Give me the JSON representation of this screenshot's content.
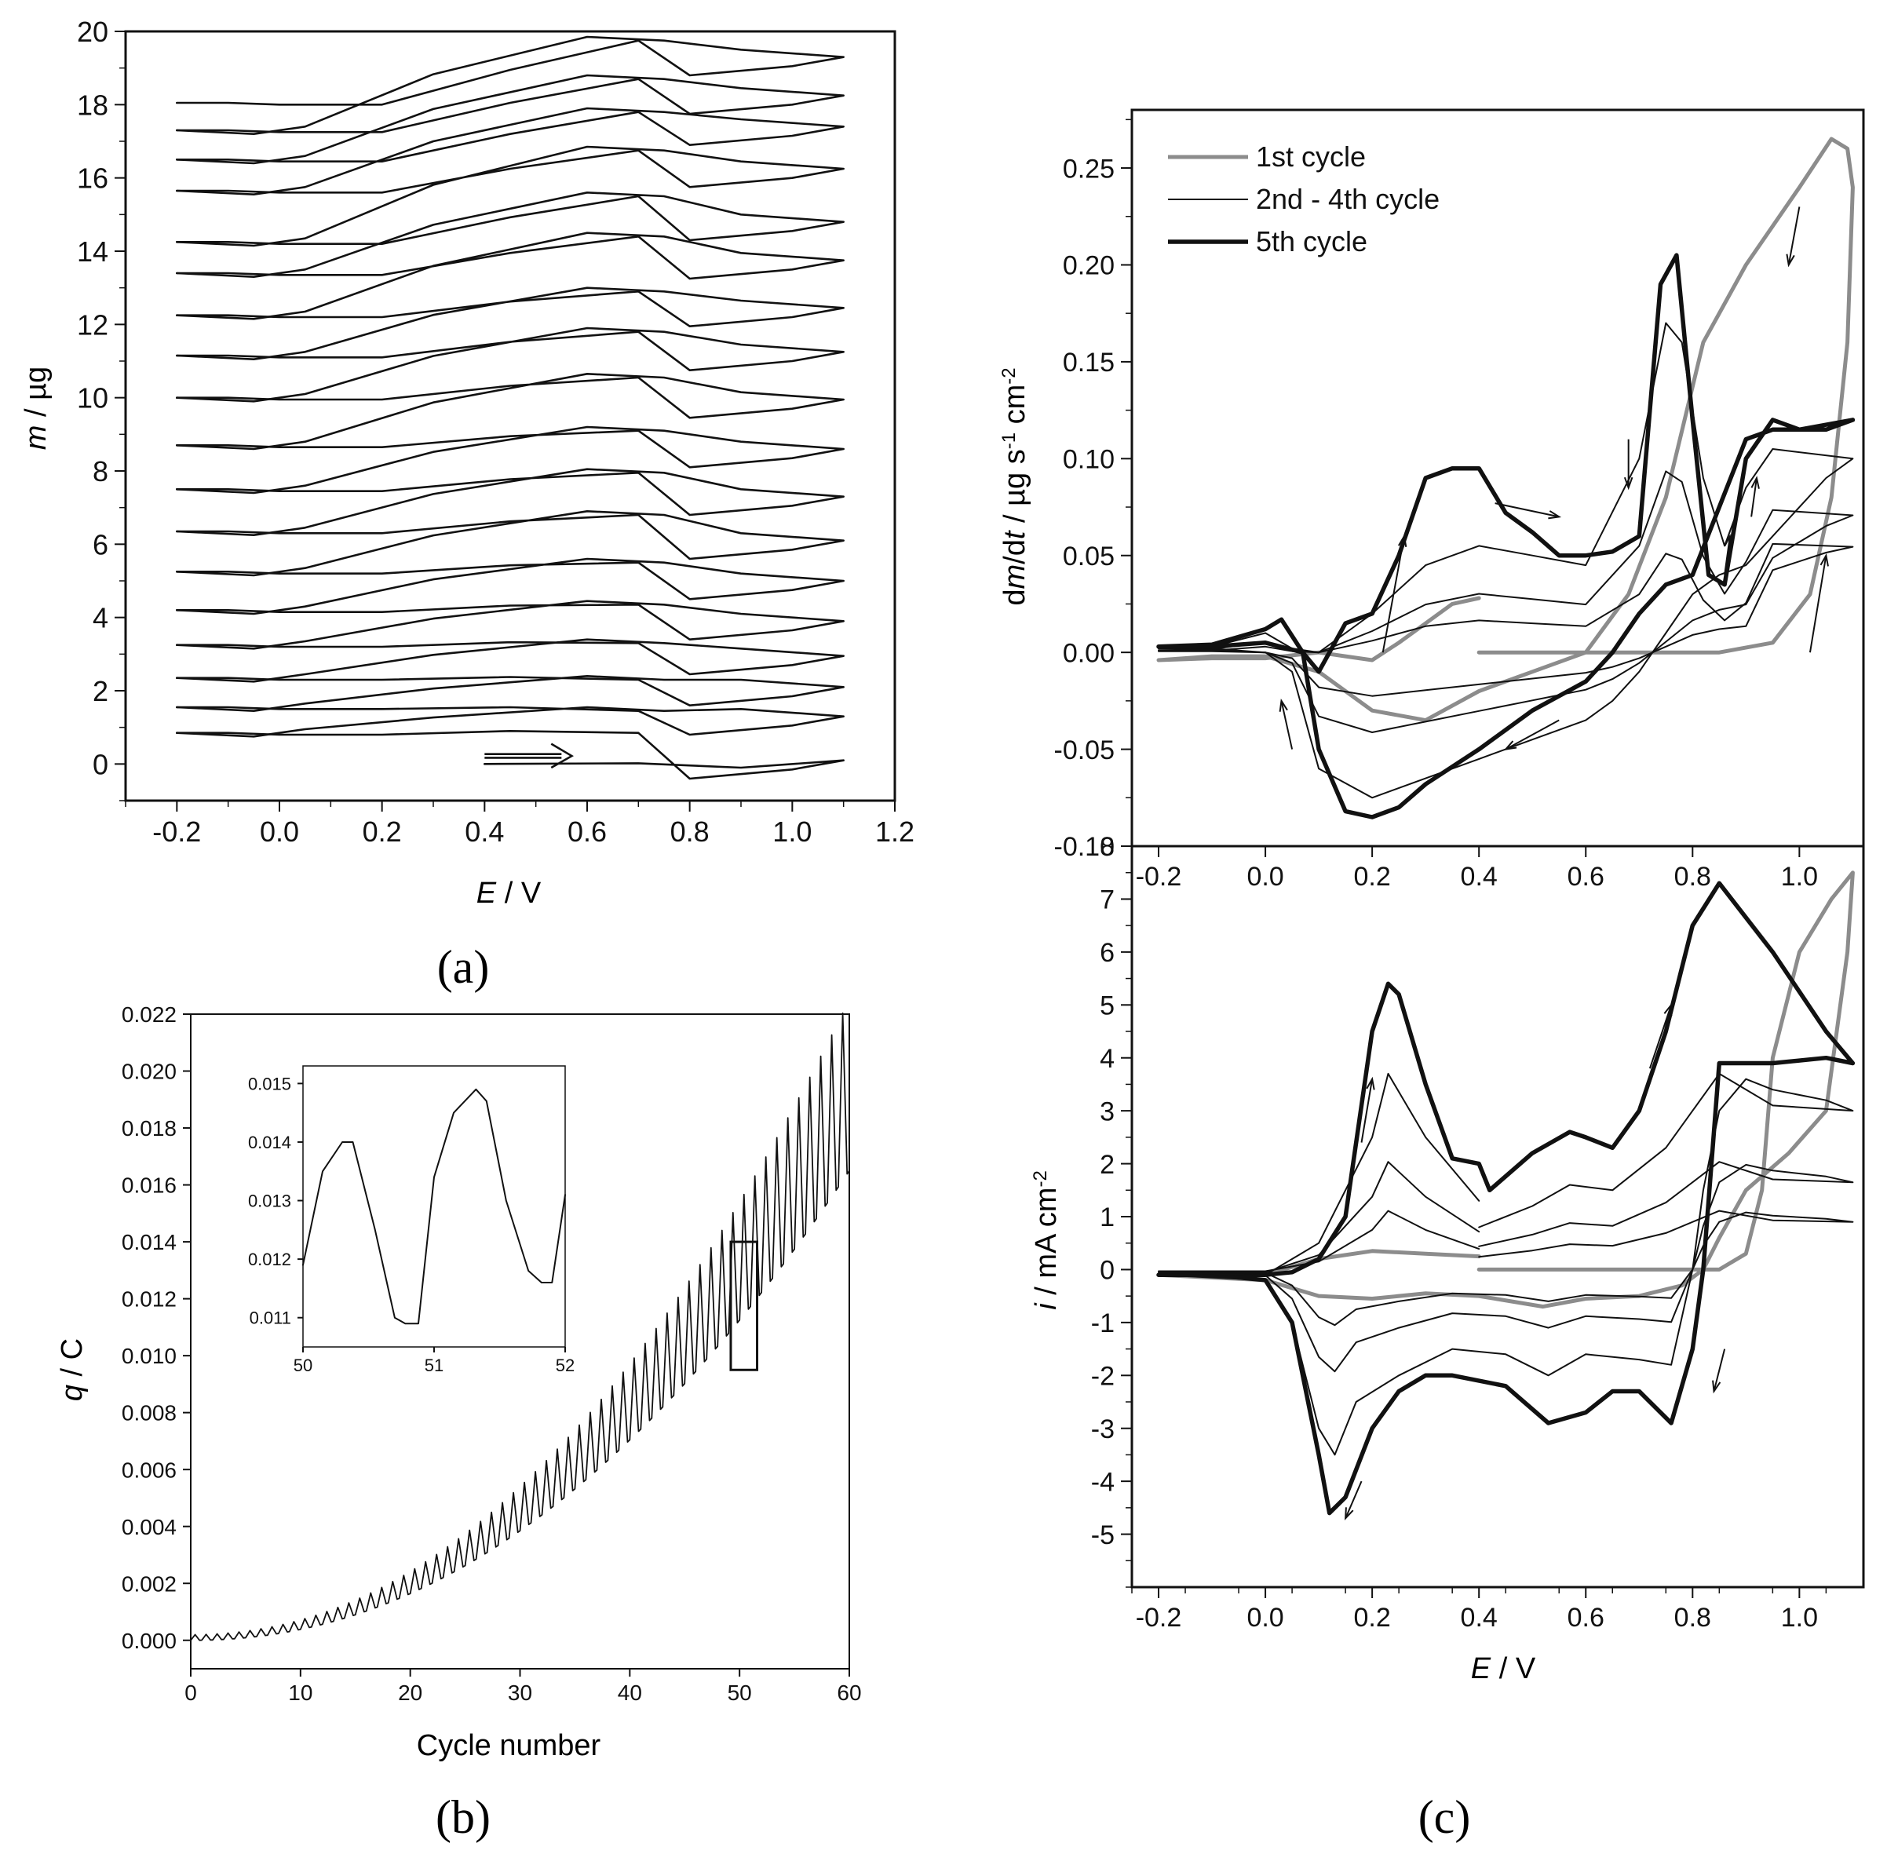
{
  "panels": {
    "a": {
      "label": "(a)"
    },
    "b": {
      "label": "(b)"
    },
    "c": {
      "label": "(c)"
    }
  },
  "colors": {
    "black": "#111111",
    "gray": "#8c8c8c"
  },
  "chart_data": [
    {
      "id": "a",
      "type": "line",
      "title": "",
      "xlabel": "E / V",
      "ylabel": "m / µg",
      "xlim": [
        -0.3,
        1.2
      ],
      "ylim": [
        -1,
        20
      ],
      "xticks": [
        -0.2,
        0.0,
        0.2,
        0.4,
        0.6,
        0.8,
        1.0,
        1.2
      ],
      "xtick_labels": [
        "-0.2",
        "0.0",
        "0.2",
        "0.4",
        "0.6",
        "0.8",
        "1.0",
        "1.2"
      ],
      "yticks": [
        0,
        2,
        4,
        6,
        8,
        10,
        12,
        14,
        16,
        18,
        20
      ],
      "ytick_labels": [
        "0",
        "2",
        "4",
        "6",
        "8",
        "10",
        "12",
        "14",
        "16",
        "18",
        "20"
      ],
      "annotation": "arrow at E = 0.4 → 0.55 V, m = 0 µg (scan direction)",
      "cycle_start_masses": [
        0.0,
        0.85,
        1.55,
        2.35,
        3.25,
        4.2,
        5.25,
        6.35,
        7.5,
        8.7,
        10.0,
        11.15,
        12.25,
        13.4,
        14.25,
        15.65,
        16.5,
        17.3,
        18.05
      ],
      "cycle_end_masses_at_1_1V": [
        0.1,
        1.3,
        2.1,
        2.95,
        3.9,
        5.0,
        6.1,
        7.3,
        8.6,
        9.95,
        11.25,
        12.45,
        13.75,
        14.8,
        16.25,
        17.4,
        18.25,
        19.3
      ],
      "cycle_peak_masses": [
        0.95,
        1.55,
        2.4,
        3.4,
        4.45,
        5.6,
        6.9,
        8.05,
        9.2,
        10.65,
        11.9,
        13.0,
        14.5,
        15.6,
        16.85,
        17.9,
        18.8,
        19.85
      ],
      "e_min": -0.2,
      "e_max": 1.1
    },
    {
      "id": "b",
      "type": "line",
      "title": "",
      "xlabel": "Cycle number",
      "ylabel": "q / C",
      "xlim": [
        0,
        60
      ],
      "ylim": [
        -0.001,
        0.022
      ],
      "xticks": [
        0,
        10,
        20,
        30,
        40,
        50,
        60
      ],
      "xtick_labels": [
        "0",
        "10",
        "20",
        "30",
        "40",
        "50",
        "60"
      ],
      "yticks": [
        0.0,
        0.002,
        0.004,
        0.006,
        0.008,
        0.01,
        0.012,
        0.014,
        0.016,
        0.018,
        0.02,
        0.022
      ],
      "ytick_labels": [
        "0.000",
        "0.002",
        "0.004",
        "0.006",
        "0.008",
        "0.010",
        "0.012",
        "0.014",
        "0.016",
        "0.018",
        "0.020",
        "0.022"
      ],
      "trend": {
        "description": "oscillating charge, one oscillation per cycle, with growing baseline",
        "baseline_start": 0.0,
        "baseline_end": 0.0165,
        "amplitude_start": 0.0002,
        "amplitude_end": 0.006
      },
      "highlight_box": {
        "x": [
          49.2,
          51.6
        ],
        "y": [
          0.0095,
          0.014
        ]
      },
      "inset": {
        "xlim": [
          50,
          52
        ],
        "ylim": [
          0.0105,
          0.0153
        ],
        "xticks": [
          50,
          51,
          52
        ],
        "xtick_labels": [
          "50",
          "51",
          "52"
        ],
        "yticks": [
          0.011,
          0.012,
          0.013,
          0.014,
          0.015
        ],
        "ytick_labels": [
          "0.011",
          "0.012",
          "0.013",
          "0.014",
          "0.015"
        ],
        "x": [
          50.0,
          50.15,
          50.3,
          50.38,
          50.55,
          50.7,
          50.78,
          50.88,
          51.0,
          51.15,
          51.32,
          51.4,
          51.55,
          51.72,
          51.82,
          51.9,
          52.0
        ],
        "y": [
          0.0119,
          0.0135,
          0.014,
          0.014,
          0.0125,
          0.011,
          0.0109,
          0.0109,
          0.0134,
          0.0145,
          0.0149,
          0.0147,
          0.013,
          0.0118,
          0.0116,
          0.0116,
          0.0131
        ]
      }
    },
    {
      "id": "c-top",
      "type": "line",
      "title": "",
      "xlabel": "",
      "ylabel": "dm/dt / µg s⁻¹ cm⁻²",
      "xlim": [
        -0.25,
        1.12
      ],
      "ylim": [
        -0.1,
        0.28
      ],
      "xticks": [
        -0.2,
        0.0,
        0.2,
        0.4,
        0.6,
        0.8,
        1.0
      ],
      "xtick_labels": [
        "-0.2",
        "0.0",
        "0.2",
        "0.4",
        "0.6",
        "0.8",
        "1.0"
      ],
      "yticks": [
        -0.1,
        -0.05,
        0.0,
        0.05,
        0.1,
        0.15,
        0.2,
        0.25
      ],
      "ytick_labels": [
        "-0.10",
        "-0.05",
        "0.00",
        "0.05",
        "0.10",
        "0.15",
        "0.20",
        "0.25"
      ],
      "legend": {
        "placement": "top-left",
        "entries": [
          "1st cycle",
          "2nd - 4th cycle",
          "5th cycle"
        ]
      },
      "series": [
        {
          "name": "1st cycle",
          "style": "gray-thick",
          "x": [
            0.4,
            0.6,
            0.85,
            0.95,
            1.02,
            1.06,
            1.09,
            1.1,
            1.09,
            1.06,
            1.0,
            0.9,
            0.82,
            0.75,
            0.68,
            0.6,
            0.5,
            0.4,
            0.3,
            0.2,
            0.1,
            0.0,
            -0.1,
            -0.2,
            -0.1,
            0.0,
            0.1,
            0.15,
            0.2,
            0.25,
            0.3,
            0.35,
            0.4
          ],
          "y": [
            0.0,
            0.0,
            0.0,
            0.005,
            0.03,
            0.08,
            0.16,
            0.24,
            0.26,
            0.265,
            0.24,
            0.2,
            0.16,
            0.08,
            0.03,
            0.0,
            -0.01,
            -0.02,
            -0.035,
            -0.03,
            -0.01,
            -0.002,
            -0.002,
            -0.004,
            -0.003,
            -0.003,
            0.0,
            -0.002,
            -0.004,
            0.005,
            0.015,
            0.025,
            0.028
          ]
        },
        {
          "name": "2nd - 4th cycle",
          "style": "black-thin",
          "x": [
            -0.2,
            -0.1,
            0.0,
            0.05,
            0.1,
            0.15,
            0.2,
            0.3,
            0.4,
            0.5,
            0.6,
            0.7,
            0.75,
            0.78,
            0.82,
            0.86,
            0.9,
            0.95,
            1.1,
            1.05,
            0.95,
            0.9,
            0.85,
            0.8,
            0.75,
            0.7,
            0.65,
            0.6,
            0.5,
            0.4,
            0.3,
            0.2,
            0.1,
            0.05,
            0.0,
            -0.1,
            -0.2
          ],
          "y": [
            0.002,
            0.003,
            0.01,
            0.002,
            0.0,
            0.01,
            0.02,
            0.045,
            0.055,
            0.05,
            0.045,
            0.1,
            0.17,
            0.16,
            0.09,
            0.055,
            0.085,
            0.105,
            0.1,
            0.09,
            0.06,
            0.045,
            0.04,
            0.03,
            0.01,
            -0.01,
            -0.025,
            -0.035,
            -0.045,
            -0.055,
            -0.065,
            -0.075,
            -0.06,
            -0.01,
            0.0,
            0.002,
            0.002
          ]
        },
        {
          "name": "5th cycle",
          "style": "black-thick",
          "x": [
            -0.2,
            -0.1,
            0.0,
            0.03,
            0.07,
            0.1,
            0.15,
            0.2,
            0.25,
            0.3,
            0.35,
            0.4,
            0.45,
            0.5,
            0.55,
            0.6,
            0.65,
            0.7,
            0.74,
            0.77,
            0.8,
            0.83,
            0.86,
            0.9,
            0.95,
            1.0,
            1.1,
            1.05,
            0.95,
            0.9,
            0.85,
            0.8,
            0.75,
            0.7,
            0.65,
            0.6,
            0.5,
            0.4,
            0.3,
            0.25,
            0.2,
            0.15,
            0.1,
            0.07,
            0.0,
            -0.1,
            -0.2
          ],
          "y": [
            0.003,
            0.004,
            0.012,
            0.017,
            0.0,
            -0.01,
            0.015,
            0.02,
            0.05,
            0.09,
            0.095,
            0.095,
            0.072,
            0.062,
            0.05,
            0.05,
            0.052,
            0.06,
            0.19,
            0.205,
            0.12,
            0.04,
            0.035,
            0.1,
            0.12,
            0.115,
            0.12,
            0.115,
            0.115,
            0.11,
            0.075,
            0.04,
            0.035,
            0.02,
            0.0,
            -0.015,
            -0.03,
            -0.05,
            -0.068,
            -0.08,
            -0.085,
            -0.082,
            -0.05,
            0.0,
            0.005,
            0.003,
            0.003
          ]
        }
      ]
    },
    {
      "id": "c-bottom",
      "type": "line",
      "title": "",
      "xlabel": "E / V",
      "ylabel": "i / mA cm⁻²",
      "xlim": [
        -0.25,
        1.12
      ],
      "ylim": [
        -6,
        8
      ],
      "xticks": [
        -0.2,
        0.0,
        0.2,
        0.4,
        0.6,
        0.8,
        1.0
      ],
      "xtick_labels": [
        "-0.2",
        "0.0",
        "0.2",
        "0.4",
        "0.6",
        "0.8",
        "1.0"
      ],
      "yticks": [
        -5,
        -4,
        -3,
        -2,
        -1,
        0,
        1,
        2,
        3,
        4,
        5,
        6,
        7,
        8
      ],
      "ytick_labels": [
        "-5",
        "-4",
        "-3",
        "-2",
        "-1",
        "0",
        "1",
        "2",
        "3",
        "4",
        "5",
        "6",
        "7",
        "8"
      ],
      "series": [
        {
          "name": "1st cycle",
          "style": "gray-thick",
          "x": [
            0.4,
            0.6,
            0.85,
            0.9,
            0.93,
            0.95,
            1.0,
            1.06,
            1.1,
            1.09,
            1.05,
            0.98,
            0.9,
            0.85,
            0.82,
            0.78,
            0.7,
            0.6,
            0.52,
            0.4,
            0.3,
            0.2,
            0.1,
            0.0,
            -0.2,
            0.0,
            0.1,
            0.2,
            0.3,
            0.4
          ],
          "y": [
            0.0,
            0.0,
            0.0,
            0.3,
            1.5,
            4.0,
            6.0,
            7.0,
            7.5,
            6.0,
            3.0,
            2.2,
            1.5,
            0.6,
            0.0,
            -0.3,
            -0.5,
            -0.55,
            -0.7,
            -0.5,
            -0.45,
            -0.55,
            -0.5,
            -0.2,
            -0.1,
            -0.1,
            0.2,
            0.35,
            0.3,
            0.25
          ]
        },
        {
          "name": "2nd - 4th cycle",
          "style": "black-thin",
          "x": [
            0.4,
            0.5,
            0.57,
            0.65,
            0.75,
            0.85,
            0.95,
            1.1,
            1.05,
            0.95,
            0.9,
            0.85,
            0.82,
            0.8,
            0.76,
            0.7,
            0.6,
            0.53,
            0.45,
            0.35,
            0.25,
            0.17,
            0.13,
            0.1,
            0.05,
            0.0,
            -0.2,
            0.0,
            0.1,
            0.2,
            0.23,
            0.3,
            0.4
          ],
          "y": [
            0.8,
            1.2,
            1.6,
            1.5,
            2.3,
            3.7,
            3.1,
            3.0,
            3.2,
            3.4,
            3.6,
            3.0,
            1.5,
            0.0,
            -1.8,
            -1.7,
            -1.6,
            -2.0,
            -1.6,
            -1.5,
            -2.0,
            -2.5,
            -3.5,
            -3.0,
            -1.0,
            -0.2,
            -0.1,
            -0.1,
            0.5,
            2.5,
            3.7,
            2.5,
            1.3
          ]
        },
        {
          "name": "5th cycle",
          "style": "black-thick",
          "x": [
            -0.2,
            -0.1,
            0.0,
            0.05,
            0.1,
            0.12,
            0.15,
            0.2,
            0.25,
            0.3,
            0.35,
            0.45,
            0.53,
            0.6,
            0.65,
            0.7,
            0.76,
            0.8,
            0.82,
            0.85,
            0.9,
            0.95,
            1.05,
            1.1,
            1.05,
            0.95,
            0.85,
            0.8,
            0.75,
            0.7,
            0.65,
            0.6,
            0.57,
            0.5,
            0.42,
            0.4,
            0.35,
            0.3,
            0.25,
            0.23,
            0.2,
            0.15,
            0.1,
            0.05,
            0.0,
            -0.2
          ],
          "y": [
            -0.1,
            -0.1,
            -0.2,
            -1.0,
            -3.5,
            -4.6,
            -4.3,
            -3.0,
            -2.3,
            -2.0,
            -2.0,
            -2.2,
            -2.9,
            -2.7,
            -2.3,
            -2.3,
            -2.9,
            -1.5,
            0.0,
            3.9,
            3.9,
            3.9,
            4.0,
            3.9,
            4.5,
            6.0,
            7.3,
            6.5,
            4.5,
            3.0,
            2.3,
            2.5,
            2.6,
            2.2,
            1.5,
            2.0,
            2.1,
            3.5,
            5.2,
            5.4,
            4.5,
            1.0,
            0.2,
            -0.05,
            -0.1,
            -0.1
          ]
        }
      ]
    }
  ]
}
